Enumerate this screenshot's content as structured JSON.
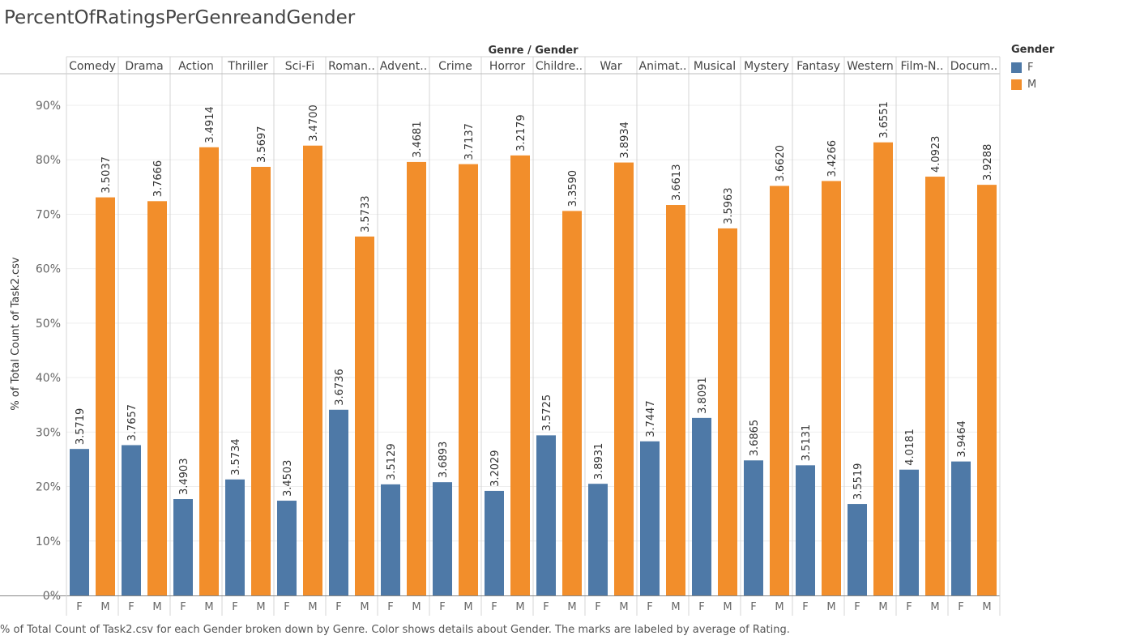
{
  "title": "PercentOfRatingsPerGenreandGender",
  "caption": "% of Total Count of Task2.csv for each Gender broken down by Genre.  Color shows details about Gender.  The marks are labeled by average of Rating.",
  "legend": {
    "title": "Gender",
    "items": [
      {
        "label": "F",
        "color": "#4e79a7"
      },
      {
        "label": "M",
        "color": "#f28e2b"
      }
    ]
  },
  "chart_data": {
    "type": "bar",
    "column_header": "Genre / Gender",
    "ylabel": "% of Total Count of Task2.csv",
    "ylim": [
      0,
      90
    ],
    "yticks": [
      0,
      10,
      20,
      30,
      40,
      50,
      60,
      70,
      80,
      90
    ],
    "ytick_labels": [
      "0%",
      "10%",
      "20%",
      "30%",
      "40%",
      "50%",
      "60%",
      "70%",
      "80%",
      "90%"
    ],
    "genres": [
      "Comedy",
      "Drama",
      "Action",
      "Thriller",
      "Sci-Fi",
      "Roman..",
      "Advent..",
      "Crime",
      "Horror",
      "Childre..",
      "War",
      "Animat..",
      "Musical",
      "Mystery",
      "Fantasy",
      "Western",
      "Film-N..",
      "Docum.."
    ],
    "series": [
      {
        "name": "F",
        "color": "#4e79a7",
        "values": [
          26.9,
          27.6,
          17.7,
          21.3,
          17.4,
          34.1,
          20.4,
          20.8,
          19.2,
          29.4,
          20.5,
          28.3,
          32.6,
          24.8,
          23.9,
          16.8,
          23.1,
          24.6
        ],
        "labels": [
          "3.5719",
          "3.7657",
          "3.4903",
          "3.5734",
          "3.4503",
          "3.6736",
          "3.5129",
          "3.6893",
          "3.2029",
          "3.5725",
          "3.8931",
          "3.7447",
          "3.8091",
          "3.6865",
          "3.5131",
          "3.5519",
          "4.0181",
          "3.9464"
        ]
      },
      {
        "name": "M",
        "color": "#f28e2b",
        "values": [
          73.1,
          72.4,
          82.3,
          78.7,
          82.6,
          65.9,
          79.6,
          79.2,
          80.8,
          70.6,
          79.5,
          71.7,
          67.4,
          75.2,
          76.1,
          83.2,
          76.9,
          75.4
        ],
        "labels": [
          "3.5037",
          "3.7666",
          "3.4914",
          "3.5697",
          "3.4700",
          "3.5733",
          "3.4681",
          "3.7137",
          "3.2179",
          "3.3590",
          "3.8934",
          "3.6613",
          "3.5963",
          "3.6620",
          "3.4266",
          "3.6551",
          "4.0923",
          "3.9288"
        ]
      }
    ],
    "grid": true,
    "legend_position": "right"
  }
}
